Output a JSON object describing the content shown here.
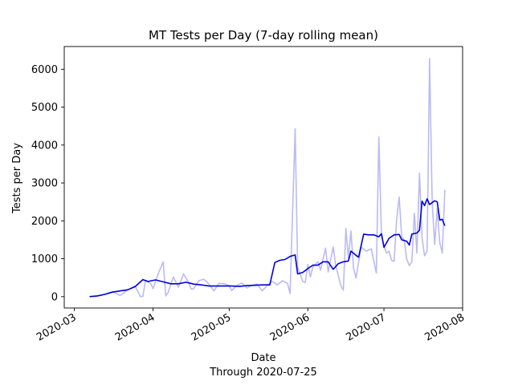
{
  "chart_data": {
    "type": "line",
    "title": "MT Tests per Day (7-day rolling mean)",
    "xlabel": "Date",
    "subtitle": "Through 2020-07-25",
    "ylabel": "Tests per Day",
    "xlim": [
      "2020-02-26",
      "2020-08-01"
    ],
    "ylim": [
      -300,
      6600
    ],
    "x_ticks": [
      "2020-03",
      "2020-04",
      "2020-05",
      "2020-06",
      "2020-07",
      "2020-08"
    ],
    "y_ticks": [
      0,
      1000,
      2000,
      3000,
      4000,
      5000,
      6000
    ],
    "grid": false,
    "legend": "none",
    "series": [
      {
        "role": "daily",
        "color": "#babaf5",
        "points": [
          [
            "2020-03-07",
            0
          ],
          [
            "2020-03-10",
            10
          ],
          [
            "2020-03-13",
            60
          ],
          [
            "2020-03-16",
            130
          ],
          [
            "2020-03-19",
            30
          ],
          [
            "2020-03-22",
            180
          ],
          [
            "2020-03-25",
            260
          ],
          [
            "2020-03-27",
            0
          ],
          [
            "2020-03-28",
            10
          ],
          [
            "2020-03-29",
            420
          ],
          [
            "2020-03-31",
            350
          ],
          [
            "2020-04-01",
            210
          ],
          [
            "2020-04-03",
            600
          ],
          [
            "2020-04-05",
            920
          ],
          [
            "2020-04-06",
            20
          ],
          [
            "2020-04-07",
            120
          ],
          [
            "2020-04-09",
            520
          ],
          [
            "2020-04-11",
            250
          ],
          [
            "2020-04-13",
            600
          ],
          [
            "2020-04-15",
            380
          ],
          [
            "2020-04-16",
            200
          ],
          [
            "2020-04-17",
            210
          ],
          [
            "2020-04-19",
            420
          ],
          [
            "2020-04-21",
            460
          ],
          [
            "2020-04-23",
            330
          ],
          [
            "2020-04-25",
            150
          ],
          [
            "2020-04-27",
            350
          ],
          [
            "2020-04-29",
            340
          ],
          [
            "2020-05-01",
            290
          ],
          [
            "2020-05-02",
            160
          ],
          [
            "2020-05-04",
            290
          ],
          [
            "2020-05-06",
            360
          ],
          [
            "2020-05-08",
            230
          ],
          [
            "2020-05-10",
            300
          ],
          [
            "2020-05-12",
            330
          ],
          [
            "2020-05-14",
            150
          ],
          [
            "2020-05-16",
            290
          ],
          [
            "2020-05-18",
            400
          ],
          [
            "2020-05-20",
            310
          ],
          [
            "2020-05-22",
            420
          ],
          [
            "2020-05-24",
            350
          ],
          [
            "2020-05-25",
            80
          ],
          [
            "2020-05-27",
            4430
          ],
          [
            "2020-05-28",
            780
          ],
          [
            "2020-05-30",
            400
          ],
          [
            "2020-05-31",
            370
          ],
          [
            "2020-06-01",
            850
          ],
          [
            "2020-06-02",
            520
          ],
          [
            "2020-06-03",
            780
          ],
          [
            "2020-06-05",
            920
          ],
          [
            "2020-06-06",
            700
          ],
          [
            "2020-06-08",
            1280
          ],
          [
            "2020-06-09",
            650
          ],
          [
            "2020-06-11",
            1310
          ],
          [
            "2020-06-12",
            820
          ],
          [
            "2020-06-14",
            290
          ],
          [
            "2020-06-15",
            170
          ],
          [
            "2020-06-16",
            1800
          ],
          [
            "2020-06-17",
            1010
          ],
          [
            "2020-06-18",
            1730
          ],
          [
            "2020-06-19",
            750
          ],
          [
            "2020-06-20",
            490
          ],
          [
            "2020-06-22",
            1310
          ],
          [
            "2020-06-24",
            1200
          ],
          [
            "2020-06-26",
            1260
          ],
          [
            "2020-06-28",
            620
          ],
          [
            "2020-06-29",
            4210
          ],
          [
            "2020-06-30",
            1700
          ],
          [
            "2020-07-01",
            1330
          ],
          [
            "2020-07-02",
            1150
          ],
          [
            "2020-07-03",
            1200
          ],
          [
            "2020-07-04",
            960
          ],
          [
            "2020-07-05",
            930
          ],
          [
            "2020-07-06",
            2050
          ],
          [
            "2020-07-07",
            2630
          ],
          [
            "2020-07-08",
            1580
          ],
          [
            "2020-07-09",
            1500
          ],
          [
            "2020-07-10",
            980
          ],
          [
            "2020-07-11",
            820
          ],
          [
            "2020-07-12",
            920
          ],
          [
            "2020-07-13",
            2200
          ],
          [
            "2020-07-14",
            1150
          ],
          [
            "2020-07-15",
            3260
          ],
          [
            "2020-07-16",
            1560
          ],
          [
            "2020-07-17",
            1080
          ],
          [
            "2020-07-18",
            1200
          ],
          [
            "2020-07-19",
            6280
          ],
          [
            "2020-07-20",
            2500
          ],
          [
            "2020-07-21",
            1380
          ],
          [
            "2020-07-22",
            2320
          ],
          [
            "2020-07-23",
            1420
          ],
          [
            "2020-07-24",
            1150
          ],
          [
            "2020-07-25",
            2820
          ]
        ]
      },
      {
        "role": "rolling-mean",
        "color": "#0000dd",
        "points": [
          [
            "2020-03-07",
            0
          ],
          [
            "2020-03-10",
            20
          ],
          [
            "2020-03-13",
            60
          ],
          [
            "2020-03-16",
            120
          ],
          [
            "2020-03-19",
            150
          ],
          [
            "2020-03-22",
            180
          ],
          [
            "2020-03-25",
            270
          ],
          [
            "2020-03-28",
            450
          ],
          [
            "2020-03-30",
            400
          ],
          [
            "2020-04-02",
            440
          ],
          [
            "2020-04-05",
            390
          ],
          [
            "2020-04-08",
            340
          ],
          [
            "2020-04-11",
            340
          ],
          [
            "2020-04-14",
            380
          ],
          [
            "2020-04-17",
            330
          ],
          [
            "2020-04-20",
            310
          ],
          [
            "2020-04-23",
            280
          ],
          [
            "2020-04-26",
            280
          ],
          [
            "2020-04-29",
            280
          ],
          [
            "2020-05-02",
            280
          ],
          [
            "2020-05-05",
            270
          ],
          [
            "2020-05-08",
            290
          ],
          [
            "2020-05-11",
            300
          ],
          [
            "2020-05-14",
            310
          ],
          [
            "2020-05-17",
            310
          ],
          [
            "2020-05-19",
            900
          ],
          [
            "2020-05-21",
            960
          ],
          [
            "2020-05-23",
            980
          ],
          [
            "2020-05-25",
            1060
          ],
          [
            "2020-05-27",
            1100
          ],
          [
            "2020-05-28",
            600
          ],
          [
            "2020-05-30",
            640
          ],
          [
            "2020-06-01",
            740
          ],
          [
            "2020-06-03",
            830
          ],
          [
            "2020-06-05",
            830
          ],
          [
            "2020-06-07",
            920
          ],
          [
            "2020-06-09",
            920
          ],
          [
            "2020-06-11",
            720
          ],
          [
            "2020-06-13",
            870
          ],
          [
            "2020-06-15",
            920
          ],
          [
            "2020-06-17",
            940
          ],
          [
            "2020-06-18",
            1200
          ],
          [
            "2020-06-20",
            1090
          ],
          [
            "2020-06-21",
            1040
          ],
          [
            "2020-06-23",
            1650
          ],
          [
            "2020-06-25",
            1630
          ],
          [
            "2020-06-27",
            1630
          ],
          [
            "2020-06-29",
            1580
          ],
          [
            "2020-06-30",
            1660
          ],
          [
            "2020-07-01",
            1300
          ],
          [
            "2020-07-03",
            1540
          ],
          [
            "2020-07-05",
            1630
          ],
          [
            "2020-07-07",
            1640
          ],
          [
            "2020-07-08",
            1500
          ],
          [
            "2020-07-10",
            1460
          ],
          [
            "2020-07-11",
            1360
          ],
          [
            "2020-07-12",
            1650
          ],
          [
            "2020-07-14",
            1680
          ],
          [
            "2020-07-15",
            1750
          ],
          [
            "2020-07-16",
            2520
          ],
          [
            "2020-07-17",
            2400
          ],
          [
            "2020-07-18",
            2580
          ],
          [
            "2020-07-19",
            2430
          ],
          [
            "2020-07-21",
            2530
          ],
          [
            "2020-07-22",
            2500
          ],
          [
            "2020-07-23",
            2020
          ],
          [
            "2020-07-24",
            2040
          ],
          [
            "2020-07-25",
            1870
          ]
        ]
      }
    ]
  }
}
